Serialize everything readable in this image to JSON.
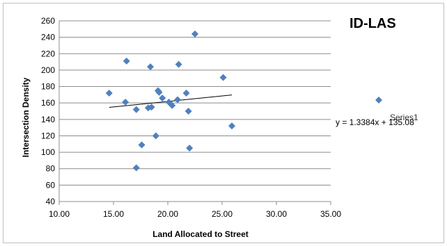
{
  "chart_data": {
    "type": "scatter",
    "title": "ID-LAS",
    "xlabel": "Land Allocated to Street",
    "ylabel": "Intersection Density",
    "xlim": [
      10,
      35
    ],
    "ylim": [
      40,
      260
    ],
    "xticks": [
      "10.00",
      "15.00",
      "20.00",
      "25.00",
      "30.00",
      "35.00"
    ],
    "yticks": [
      "40",
      "60",
      "80",
      "100",
      "120",
      "140",
      "160",
      "180",
      "200",
      "220",
      "240",
      "260"
    ],
    "grid": "horizontal",
    "legend": "right",
    "colors": {
      "series": "#4f81bd",
      "trendline": "#000000",
      "grid": "#8c8c8c"
    },
    "series": [
      {
        "name": "Series1",
        "marker": "diamond",
        "points": [
          [
            14.6,
            172
          ],
          [
            16.1,
            161
          ],
          [
            16.2,
            211
          ],
          [
            17.1,
            152
          ],
          [
            17.1,
            81
          ],
          [
            17.6,
            109
          ],
          [
            18.2,
            154
          ],
          [
            18.4,
            204
          ],
          [
            18.5,
            155
          ],
          [
            18.9,
            120
          ],
          [
            19.1,
            175
          ],
          [
            19.2,
            173
          ],
          [
            19.5,
            166
          ],
          [
            20.1,
            161
          ],
          [
            20.4,
            157
          ],
          [
            20.9,
            164
          ],
          [
            21.0,
            207
          ],
          [
            21.7,
            172
          ],
          [
            21.9,
            150
          ],
          [
            22.0,
            105
          ],
          [
            22.5,
            244
          ],
          [
            25.1,
            191
          ],
          [
            25.9,
            132
          ]
        ]
      }
    ],
    "trendline": {
      "type": "linear",
      "slope": 1.3384,
      "intercept": 135.08,
      "x_range": [
        14.6,
        25.9
      ],
      "equation": "y = 1.3384x + 135.08"
    }
  }
}
